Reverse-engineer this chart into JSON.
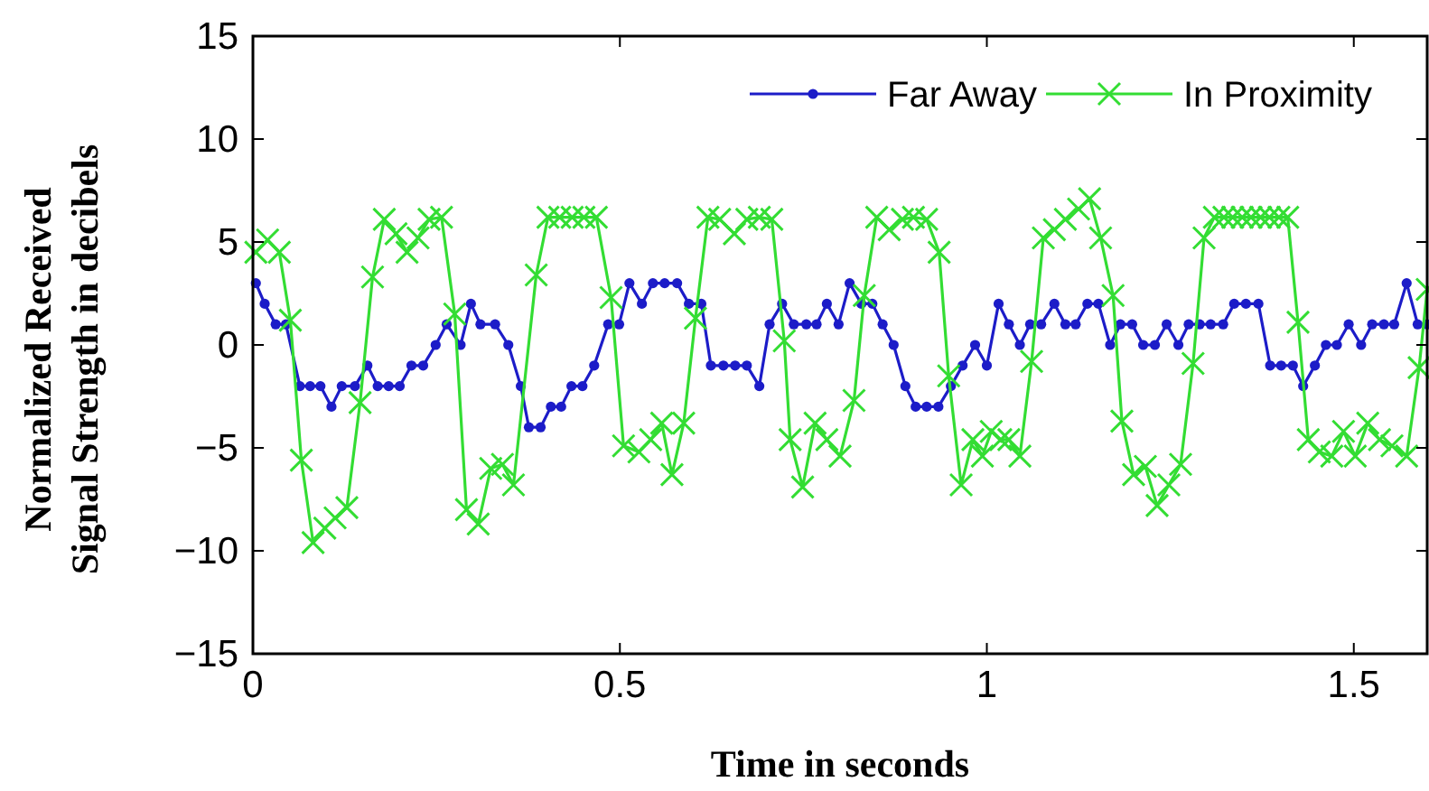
{
  "chart_data": {
    "type": "line",
    "xlabel": "Time in seconds",
    "ylabel": "Normalized Received\nSignal Strength in decibels",
    "xlim": [
      0,
      1.6
    ],
    "ylim": [
      -15,
      15
    ],
    "xticks": [
      0,
      0.5,
      1,
      1.5
    ],
    "yticks": [
      -15,
      -10,
      -5,
      0,
      5,
      10,
      15
    ],
    "grid": false,
    "legend": "top right",
    "line_style": "solid",
    "series": [
      {
        "name": "Far Away",
        "color": "#1c1cc8",
        "marker": "circle",
        "x": [
          0.004,
          0.016,
          0.031,
          0.045,
          0.064,
          0.078,
          0.092,
          0.107,
          0.121,
          0.139,
          0.156,
          0.17,
          0.185,
          0.2,
          0.216,
          0.232,
          0.249,
          0.264,
          0.283,
          0.297,
          0.31,
          0.33,
          0.348,
          0.365,
          0.376,
          0.392,
          0.406,
          0.42,
          0.434,
          0.449,
          0.465,
          0.484,
          0.499,
          0.513,
          0.53,
          0.545,
          0.561,
          0.578,
          0.594,
          0.611,
          0.624,
          0.641,
          0.657,
          0.673,
          0.69,
          0.704,
          0.721,
          0.737,
          0.754,
          0.768,
          0.782,
          0.798,
          0.813,
          0.829,
          0.844,
          0.858,
          0.873,
          0.889,
          0.903,
          0.918,
          0.934,
          0.951,
          0.967,
          0.984,
          1.0,
          1.016,
          1.03,
          1.045,
          1.059,
          1.074,
          1.092,
          1.107,
          1.121,
          1.137,
          1.152,
          1.168,
          1.182,
          1.198,
          1.213,
          1.229,
          1.245,
          1.261,
          1.275,
          1.29,
          1.305,
          1.322,
          1.337,
          1.353,
          1.37,
          1.386,
          1.401,
          1.417,
          1.431,
          1.447,
          1.462,
          1.477,
          1.493,
          1.51,
          1.525,
          1.541,
          1.555,
          1.572,
          1.587,
          1.6
        ],
        "values": [
          3,
          2,
          1,
          1,
          -2,
          -2,
          -2,
          -3,
          -2,
          -2,
          -1,
          -2,
          -2,
          -2,
          -1,
          -1,
          0,
          1,
          0,
          2,
          1,
          1,
          0,
          -2,
          -4,
          -4,
          -3,
          -3,
          -2,
          -2,
          -1,
          1,
          1,
          3,
          2,
          3,
          3,
          3,
          2,
          2,
          -1,
          -1,
          -1,
          -1,
          -2,
          1,
          2,
          1,
          1,
          1,
          2,
          1,
          3,
          2,
          2,
          1,
          0,
          -2,
          -3,
          -3,
          -3,
          -2,
          -1,
          0,
          -1,
          2,
          1,
          0,
          1,
          1,
          2,
          1,
          1,
          2,
          2,
          0,
          1,
          1,
          0,
          0,
          1,
          0,
          1,
          1,
          1,
          1,
          2,
          2,
          2,
          -1,
          -1,
          -1,
          -2,
          -1,
          0,
          0,
          1,
          0,
          1,
          1,
          1,
          3,
          1,
          1
        ]
      },
      {
        "name": "In Proximity",
        "color": "#33dd33",
        "marker": "cross",
        "x": [
          0.004,
          0.02,
          0.036,
          0.051,
          0.066,
          0.082,
          0.098,
          0.112,
          0.128,
          0.146,
          0.163,
          0.179,
          0.195,
          0.21,
          0.225,
          0.24,
          0.257,
          0.275,
          0.291,
          0.307,
          0.324,
          0.34,
          0.355,
          0.386,
          0.402,
          0.418,
          0.435,
          0.451,
          0.468,
          0.488,
          0.505,
          0.526,
          0.542,
          0.557,
          0.571,
          0.587,
          0.603,
          0.62,
          0.636,
          0.656,
          0.673,
          0.69,
          0.707,
          0.724,
          0.732,
          0.749,
          0.766,
          0.782,
          0.8,
          0.819,
          0.833,
          0.85,
          0.867,
          0.885,
          0.9,
          0.918,
          0.935,
          0.948,
          0.965,
          0.981,
          0.994,
          1.006,
          1.019,
          1.03,
          1.045,
          1.061,
          1.077,
          1.092,
          1.107,
          1.125,
          1.14,
          1.155,
          1.172,
          1.184,
          1.2,
          1.216,
          1.232,
          1.248,
          1.264,
          1.281,
          1.296,
          1.31,
          1.323,
          1.335,
          1.348,
          1.36,
          1.373,
          1.385,
          1.398,
          1.41,
          1.424,
          1.438,
          1.453,
          1.47,
          1.486,
          1.502,
          1.519,
          1.535,
          1.552,
          1.572,
          1.589,
          1.6
        ],
        "values": [
          4.5,
          5.1,
          4.5,
          1.2,
          -5.6,
          -9.6,
          -8.9,
          -8.4,
          -7.9,
          -2.8,
          3.3,
          6.1,
          5.4,
          4.5,
          5.2,
          6.1,
          6.2,
          1.5,
          -8,
          -8.7,
          -6,
          -5.8,
          -6.8,
          3.4,
          6.2,
          6.2,
          6.2,
          6.2,
          6.2,
          2.3,
          -4.9,
          -5.2,
          -4.6,
          -3.8,
          -6.3,
          -3.8,
          1.3,
          6.2,
          6.1,
          5.4,
          6.1,
          6.2,
          6.1,
          0.2,
          -4.6,
          -6.9,
          -3.8,
          -4.6,
          -5.4,
          -2.7,
          2.4,
          6.2,
          5.6,
          6.1,
          6.2,
          6.1,
          4.5,
          -1.5,
          -6.8,
          -4.6,
          -5.4,
          -4.2,
          -4.6,
          -4.6,
          -5.4,
          -0.8,
          5.2,
          5.6,
          6.1,
          6.6,
          7.1,
          5.2,
          2.4,
          -3.7,
          -6.3,
          -5.9,
          -7.8,
          -6.8,
          -5.8,
          -0.9,
          5.2,
          6.2,
          6.2,
          6.2,
          6.2,
          6.2,
          6.2,
          6.2,
          6.2,
          6.2,
          1.1,
          -4.6,
          -5.2,
          -5.4,
          -4.2,
          -5.4,
          -3.8,
          -4.6,
          -4.9,
          -5.4,
          -1.1,
          2.7
        ]
      }
    ]
  }
}
